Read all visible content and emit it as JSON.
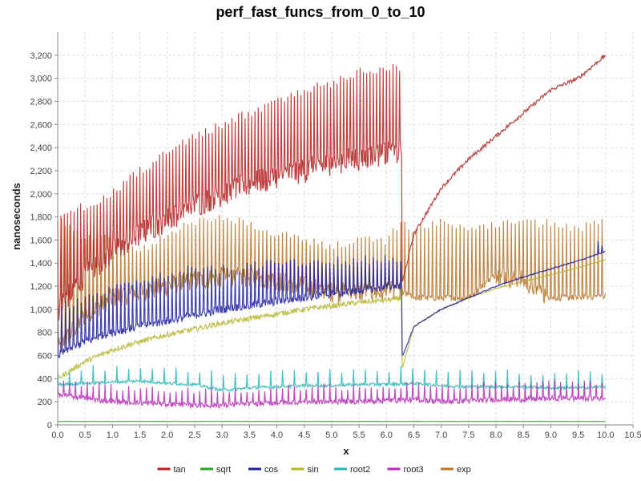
{
  "chart_data": {
    "type": "line",
    "title": "perf_fast_funcs_from_0_to_10",
    "xlabel": "x",
    "ylabel": "nanoseconds",
    "xlim": [
      0,
      10.5
    ],
    "ylim": [
      0,
      3400
    ],
    "x_ticks": [
      0.0,
      0.5,
      1.0,
      1.5,
      2.0,
      2.5,
      3.0,
      3.5,
      4.0,
      4.5,
      5.0,
      5.5,
      6.0,
      6.5,
      7.0,
      7.5,
      8.0,
      8.5,
      9.0,
      9.5,
      10.0,
      10.5
    ],
    "x_tick_labels": [
      "0.0",
      "0.5",
      "1.0",
      "1.5",
      "2.0",
      "2.5",
      "3.0",
      "3.5",
      "4.0",
      "4.5",
      "5.0",
      "5.5",
      "6.0",
      "6.5",
      "7.0",
      "7.5",
      "8.0",
      "8.5",
      "9.0",
      "9.5",
      "10.0",
      "10.5"
    ],
    "y_ticks": [
      0,
      200,
      400,
      600,
      800,
      1000,
      1200,
      1400,
      1600,
      1800,
      2000,
      2200,
      2400,
      2600,
      2800,
      3000,
      3200
    ],
    "y_tick_labels": [
      "0",
      "200",
      "400",
      "600",
      "800",
      "1,000",
      "1,200",
      "1,400",
      "1,600",
      "1,800",
      "2,000",
      "2,200",
      "2,400",
      "2,600",
      "2,800",
      "3,000",
      "3,200"
    ],
    "grid": true,
    "legend_position": "bottom",
    "series": [
      {
        "name": "tan",
        "color": "#b22222",
        "x": [
          0.0,
          0.5,
          1.0,
          1.5,
          2.0,
          2.5,
          3.0,
          3.5,
          4.0,
          4.5,
          5.0,
          5.5,
          6.0,
          6.28,
          6.3,
          6.5,
          7.0,
          7.5,
          8.0,
          8.5,
          9.0,
          9.5,
          10.0
        ],
        "values": [
          1000,
          1300,
          1500,
          1650,
          1780,
          1900,
          2000,
          2080,
          2150,
          2200,
          2270,
          2310,
          2350,
          2350,
          1250,
          1650,
          2050,
          2300,
          2500,
          2700,
          2900,
          3000,
          3200
        ],
        "spike_values": [
          1800,
          1900,
          2000,
          2200,
          2350,
          2500,
          2600,
          2700,
          2800,
          2900,
          2950,
          3050,
          3100,
          3090,
          null,
          null,
          null,
          null,
          null,
          null,
          null,
          null,
          null
        ]
      },
      {
        "name": "sqrt",
        "color": "#2aa02a",
        "x": [
          0.0,
          10.0
        ],
        "values": [
          30,
          30
        ]
      },
      {
        "name": "cos",
        "color": "#1f1f9e",
        "x": [
          0.0,
          0.5,
          1.0,
          1.5,
          2.0,
          2.5,
          3.0,
          3.5,
          4.0,
          4.5,
          5.0,
          5.5,
          6.0,
          6.28,
          6.3,
          6.5,
          7.0,
          7.5,
          8.0,
          8.5,
          9.0,
          9.5,
          10.0
        ],
        "values": [
          600,
          720,
          800,
          850,
          900,
          950,
          1000,
          1030,
          1070,
          1100,
          1130,
          1160,
          1190,
          1200,
          600,
          850,
          1000,
          1100,
          1200,
          1280,
          1350,
          1420,
          1500
        ],
        "spike_values": [
          1000,
          1100,
          1200,
          1250,
          1300,
          1350,
          1350,
          1380,
          1400,
          1400,
          1420,
          1420,
          1450,
          1450,
          null,
          null,
          null,
          null,
          null,
          null,
          null,
          null,
          1600
        ]
      },
      {
        "name": "sin",
        "color": "#b5b52a",
        "x": [
          0.0,
          0.5,
          1.0,
          1.5,
          2.0,
          2.5,
          3.0,
          3.5,
          4.0,
          4.5,
          5.0,
          5.5,
          6.0,
          6.28,
          6.3,
          6.5,
          7.0,
          7.5,
          8.0,
          8.5,
          9.0,
          9.5,
          10.0
        ],
        "values": [
          400,
          550,
          650,
          720,
          780,
          830,
          880,
          920,
          960,
          1000,
          1030,
          1060,
          1080,
          1100,
          500,
          850,
          1000,
          1100,
          1180,
          1240,
          1300,
          1360,
          1430
        ]
      },
      {
        "name": "root2",
        "color": "#2ab5b5",
        "x": [
          0.0,
          0.5,
          1.0,
          1.5,
          2.0,
          2.5,
          3.0,
          3.5,
          4.0,
          4.5,
          5.0,
          5.5,
          6.0,
          6.5,
          7.0,
          7.5,
          8.0,
          8.5,
          9.0,
          9.5,
          10.0
        ],
        "values": [
          350,
          360,
          370,
          380,
          360,
          350,
          300,
          320,
          330,
          340,
          340,
          350,
          350,
          360,
          340,
          330,
          330,
          330,
          320,
          320,
          330
        ]
      },
      {
        "name": "root3",
        "color": "#b52ab5",
        "x": [
          0.0,
          0.5,
          1.0,
          1.5,
          2.0,
          2.5,
          3.0,
          3.5,
          4.0,
          4.5,
          5.0,
          5.5,
          6.0,
          6.5,
          7.0,
          7.5,
          8.0,
          8.5,
          9.0,
          9.5,
          10.0
        ],
        "values": [
          260,
          230,
          200,
          190,
          180,
          170,
          170,
          180,
          190,
          200,
          200,
          200,
          210,
          220,
          200,
          210,
          220,
          220,
          230,
          230,
          230
        ]
      },
      {
        "name": "exp",
        "color": "#b5742a",
        "x": [
          0.0,
          0.5,
          1.0,
          1.5,
          2.0,
          2.5,
          3.0,
          3.5,
          4.0,
          4.5,
          5.0,
          5.5,
          6.0,
          6.28,
          6.5,
          7.0,
          7.5,
          8.0,
          8.5,
          9.0,
          9.5,
          10.0
        ],
        "values": [
          650,
          950,
          1100,
          1150,
          1200,
          1250,
          1280,
          1280,
          1250,
          1200,
          1150,
          1150,
          1150,
          1150,
          1100,
          1100,
          1100,
          1300,
          1250,
          1100,
          1100,
          1120
        ],
        "spike_values": [
          1800,
          1600,
          1650,
          1500,
          1650,
          1750,
          1800,
          1750,
          1650,
          1600,
          1550,
          1600,
          1600,
          1750,
          1700,
          1750,
          1700,
          1750,
          1750,
          1750,
          1700,
          1800
        ]
      }
    ]
  }
}
